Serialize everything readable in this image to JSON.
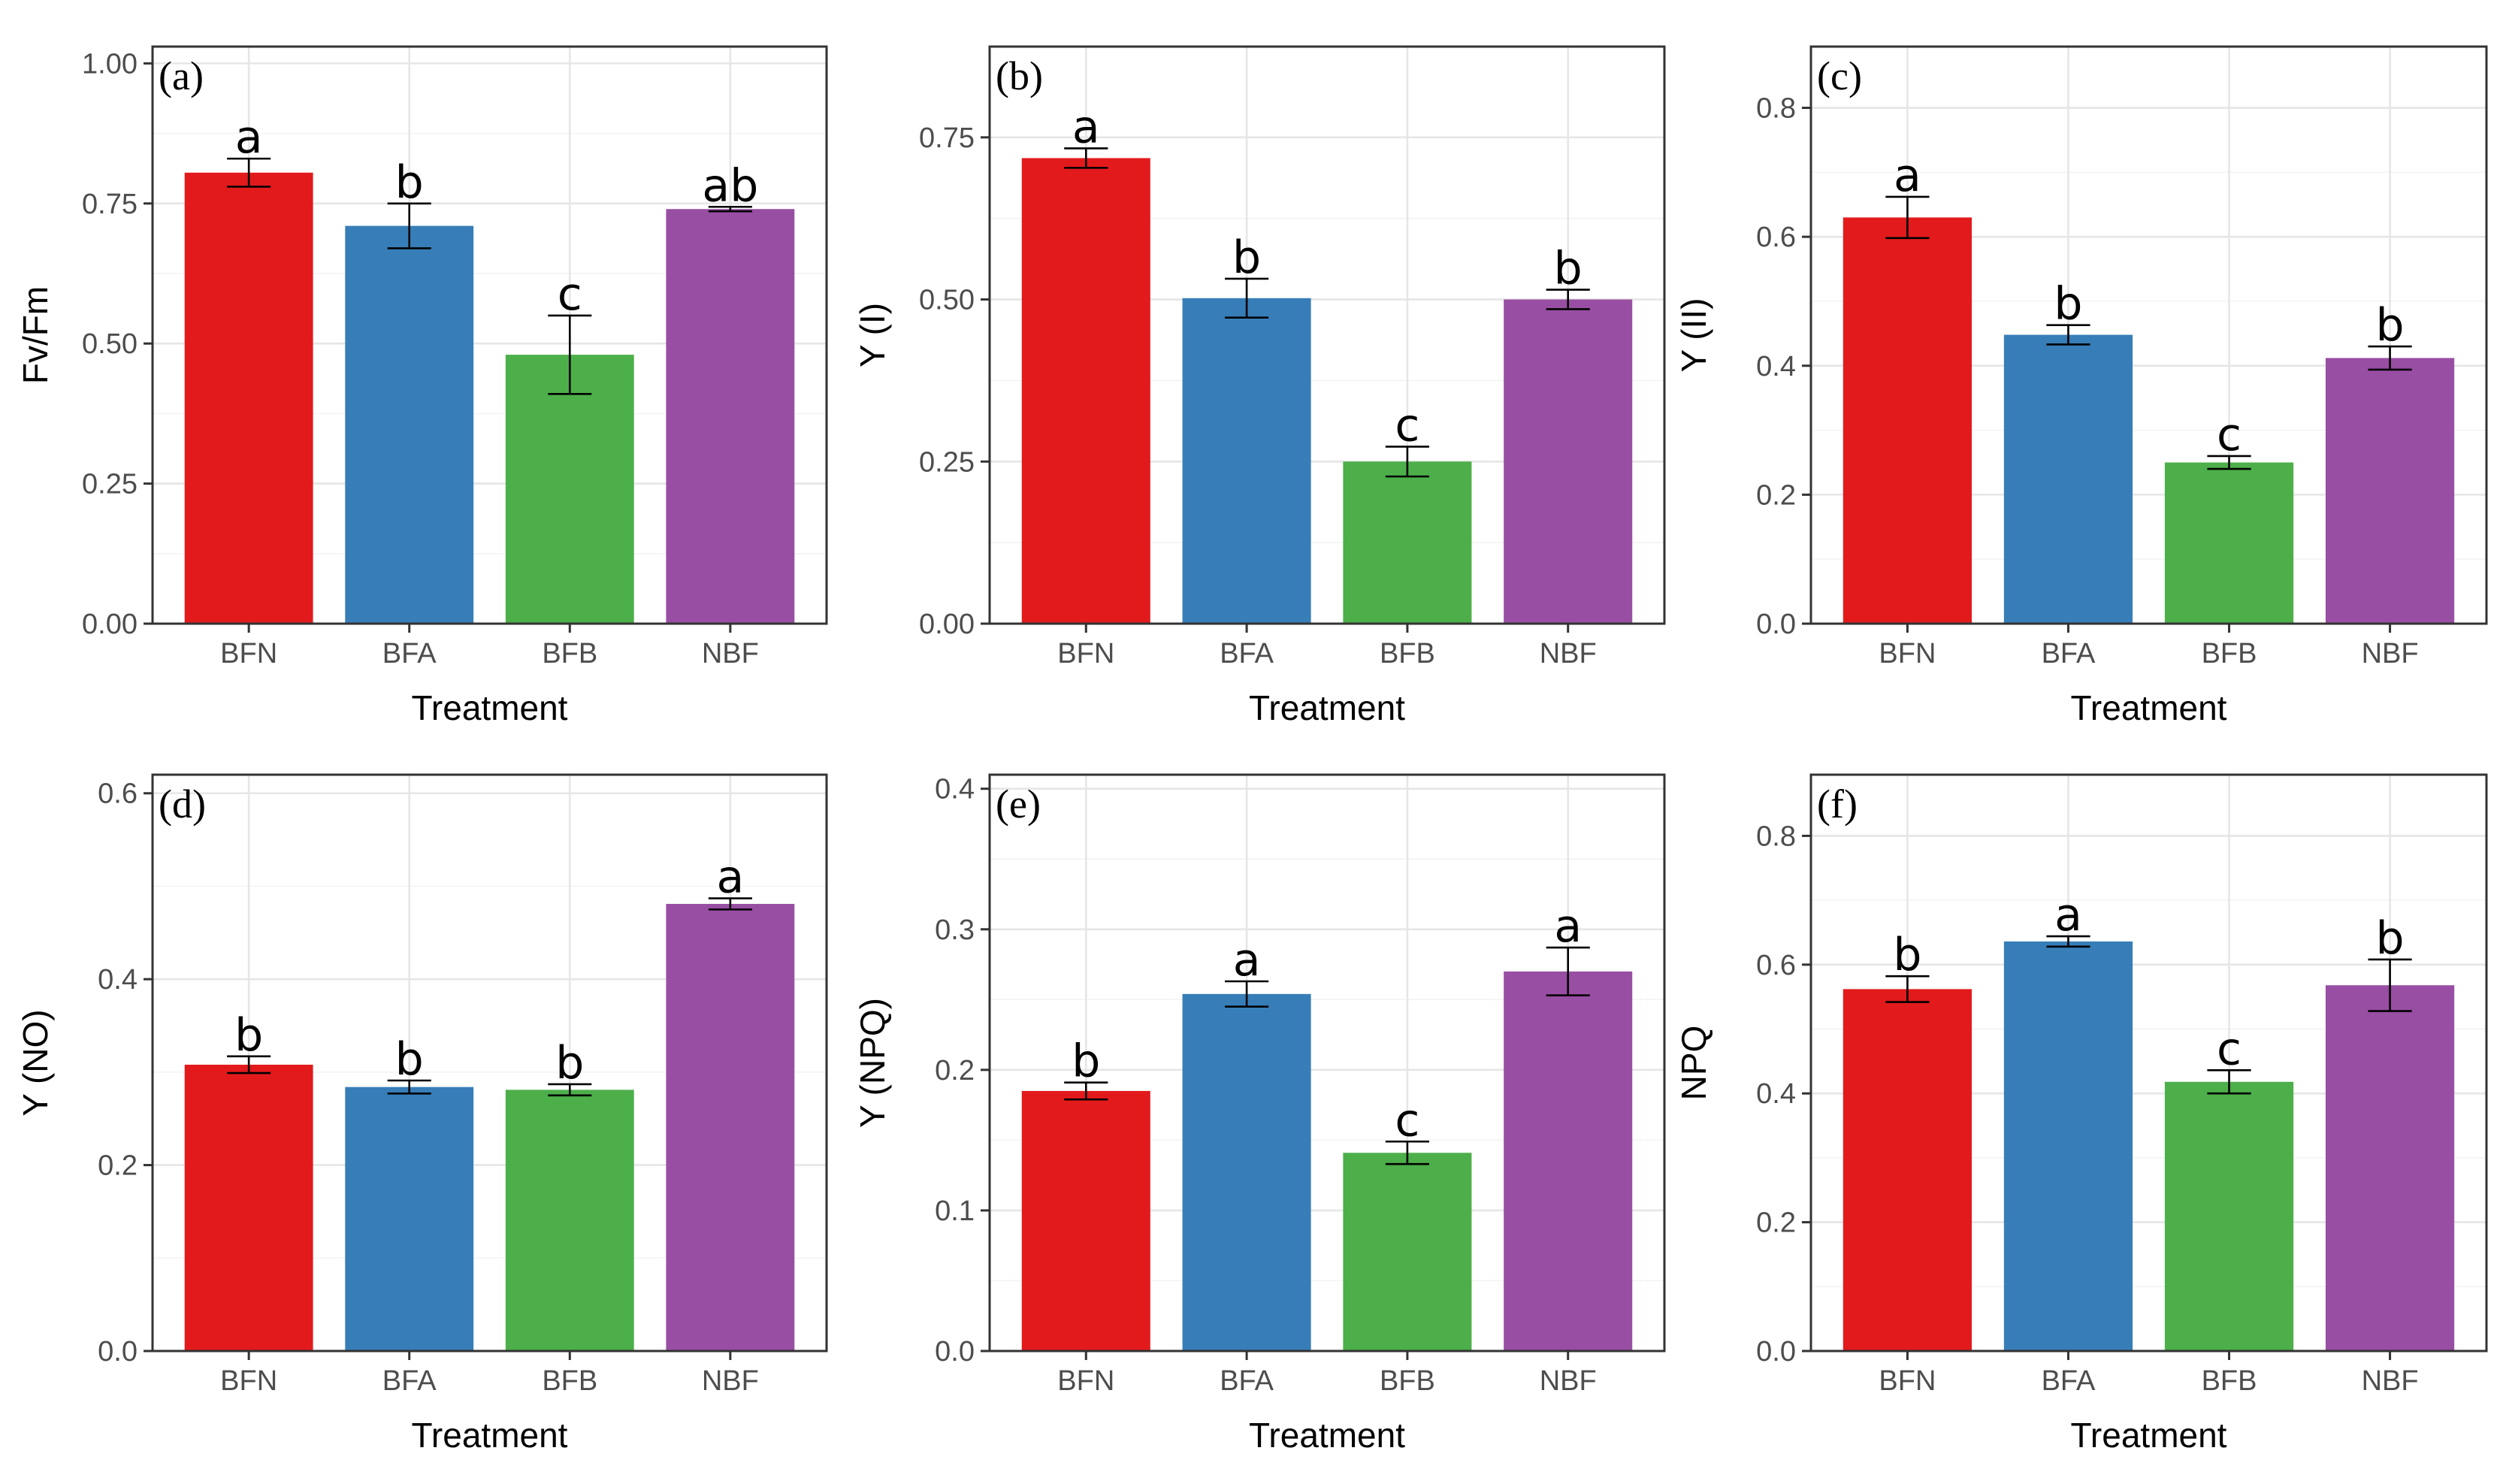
{
  "chart_data": [
    {
      "panel": "(a)",
      "type": "bar",
      "categories": [
        "BFN",
        "BFA",
        "BFB",
        "NBF"
      ],
      "values": [
        0.805,
        0.71,
        0.48,
        0.74
      ],
      "errors": [
        0.025,
        0.04,
        0.07,
        0.004
      ],
      "significance": [
        "a",
        "b",
        "c",
        "ab"
      ],
      "xlabel": "Treatment",
      "ylabel": "Fv/Fm",
      "ylim": [
        0,
        1.03
      ],
      "yticks": [
        0.0,
        0.25,
        0.5,
        0.75,
        1.0
      ],
      "ytick_labels": [
        "0.00",
        "0.25",
        "0.50",
        "0.75",
        "1.00"
      ]
    },
    {
      "panel": "(b)",
      "type": "bar",
      "categories": [
        "BFN",
        "BFA",
        "BFB",
        "NBF"
      ],
      "values": [
        0.718,
        0.502,
        0.25,
        0.5
      ],
      "errors": [
        0.015,
        0.03,
        0.023,
        0.015
      ],
      "significance": [
        "a",
        "b",
        "c",
        "b"
      ],
      "xlabel": "Treatment",
      "ylabel": "Y (I)",
      "ylim": [
        0,
        0.89
      ],
      "yticks": [
        0.0,
        0.25,
        0.5,
        0.75
      ],
      "ytick_labels": [
        "0.00",
        "0.25",
        "0.50",
        "0.75"
      ]
    },
    {
      "panel": "(c)",
      "type": "bar",
      "categories": [
        "BFN",
        "BFA",
        "BFB",
        "NBF"
      ],
      "values": [
        0.63,
        0.448,
        0.25,
        0.412
      ],
      "errors": [
        0.032,
        0.015,
        0.01,
        0.018
      ],
      "significance": [
        "a",
        "b",
        "c",
        "b"
      ],
      "xlabel": "Treatment",
      "ylabel": "Y (II)",
      "ylim": [
        0,
        0.895
      ],
      "yticks": [
        0.0,
        0.2,
        0.4,
        0.6,
        0.8
      ],
      "ytick_labels": [
        "0.0",
        "0.2",
        "0.4",
        "0.6",
        "0.8"
      ]
    },
    {
      "panel": "(d)",
      "type": "bar",
      "categories": [
        "BFN",
        "BFA",
        "BFB",
        "NBF"
      ],
      "values": [
        0.308,
        0.284,
        0.281,
        0.481
      ],
      "errors": [
        0.009,
        0.007,
        0.006,
        0.006
      ],
      "significance": [
        "b",
        "b",
        "b",
        "a"
      ],
      "xlabel": "Treatment",
      "ylabel": "Y (NO)",
      "ylim": [
        0,
        0.62
      ],
      "yticks": [
        0.0,
        0.2,
        0.4,
        0.6
      ],
      "ytick_labels": [
        "0.0",
        "0.2",
        "0.4",
        "0.6"
      ]
    },
    {
      "panel": "(e)",
      "type": "bar",
      "categories": [
        "BFN",
        "BFA",
        "BFB",
        "NBF"
      ],
      "values": [
        0.185,
        0.254,
        0.141,
        0.27
      ],
      "errors": [
        0.006,
        0.009,
        0.008,
        0.017
      ],
      "significance": [
        "b",
        "a",
        "c",
        "a"
      ],
      "xlabel": "Treatment",
      "ylabel": "Y (NPQ)",
      "ylim": [
        0,
        0.41
      ],
      "yticks": [
        0.0,
        0.1,
        0.2,
        0.3,
        0.4
      ],
      "ytick_labels": [
        "0.0",
        "0.1",
        "0.2",
        "0.3",
        "0.4"
      ]
    },
    {
      "panel": "(f)",
      "type": "bar",
      "categories": [
        "BFN",
        "BFA",
        "BFB",
        "NBF"
      ],
      "values": [
        0.562,
        0.636,
        0.418,
        0.568
      ],
      "errors": [
        0.02,
        0.008,
        0.018,
        0.04
      ],
      "significance": [
        "b",
        "a",
        "c",
        "b"
      ],
      "xlabel": "Treatment",
      "ylabel": "NPQ",
      "ylim": [
        0,
        0.895
      ],
      "yticks": [
        0.0,
        0.2,
        0.4,
        0.6,
        0.8
      ],
      "ytick_labels": [
        "0.0",
        "0.2",
        "0.4",
        "0.6",
        "0.8"
      ]
    }
  ],
  "colors": {
    "bars": [
      "#e31a1c",
      "#377eb8",
      "#4daf4a",
      "#984ea3"
    ]
  }
}
